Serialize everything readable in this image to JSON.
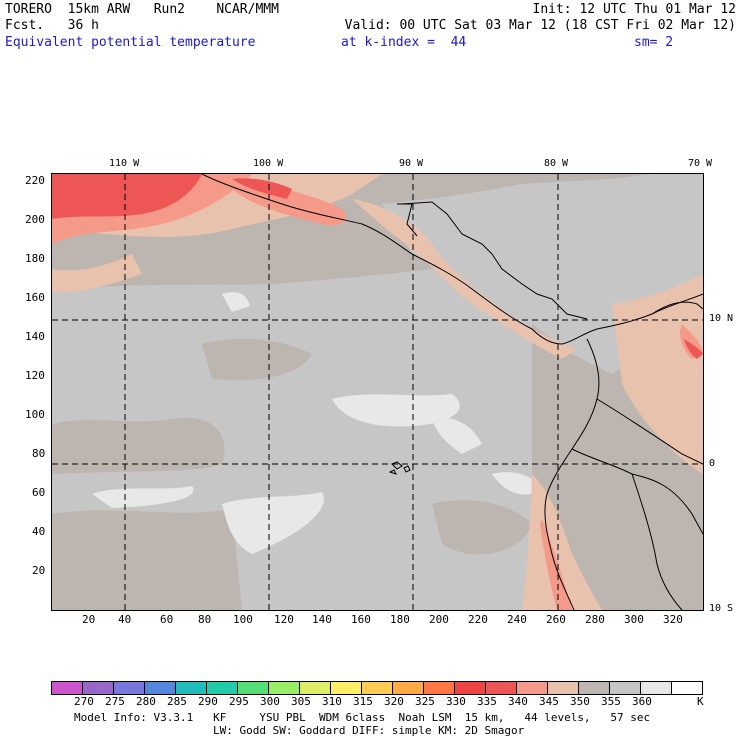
{
  "header": {
    "line1_left": "TORERO  15km ARW   Run2    NCAR/MMM",
    "line1_right": "Init: 12 UTC Thu 01 Mar 12",
    "line2_left": "Fcst.   36 h",
    "line2_right": "Valid: 00 UTC Sat 03 Mar 12 (18 CST Fri 02 Mar 12)",
    "field_name": "Equivalent potential temperature",
    "level_text": "at k-index =  44",
    "smooth_text": "sm= 2"
  },
  "map": {
    "top_lon_labels": [
      "110 W",
      "100 W",
      "90 W",
      "80 W",
      "70 W"
    ],
    "right_lat_labels": [
      "10 N",
      "0",
      "10 S"
    ],
    "left_y_ticks": [
      "220",
      "200",
      "180",
      "160",
      "140",
      "120",
      "100",
      "80",
      "60",
      "40",
      "20"
    ],
    "bottom_x_ticks": [
      "20",
      "40",
      "60",
      "80",
      "100",
      "120",
      "140",
      "160",
      "180",
      "200",
      "220",
      "240",
      "260",
      "280",
      "300",
      "320"
    ],
    "background_color": "#bdb6b0"
  },
  "colorbar": {
    "colors": [
      "#cc55cc",
      "#9966cc",
      "#7777dd",
      "#5588dd",
      "#22bbbb",
      "#22ccaa",
      "#55dd77",
      "#99ee66",
      "#ddee66",
      "#ffee66",
      "#ffcc55",
      "#ffaa44",
      "#ff7744",
      "#ee4444",
      "#ee5555",
      "#f59a88",
      "#e9c2ae",
      "#bdb6b0",
      "#c6c6c6",
      "#e8e8e8",
      "#ffffff"
    ],
    "labels": [
      "270",
      "275",
      "280",
      "285",
      "290",
      "295",
      "300",
      "305",
      "310",
      "315",
      "320",
      "325",
      "330",
      "335",
      "340",
      "345",
      "350",
      "355",
      "360"
    ],
    "unit": "K"
  },
  "footer": {
    "line1": "Model Info: V3.3.1   KF     YSU PBL  WDM 6class  Noah LSM  15 km,   44 levels,   57 sec",
    "line2": "LW: Godd SW: Goddard DIFF: simple KM: 2D Smagor"
  }
}
